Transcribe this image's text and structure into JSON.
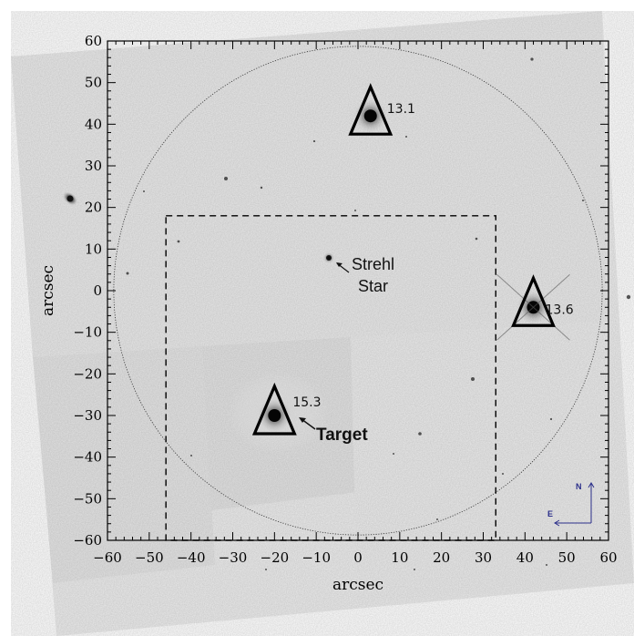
{
  "axes": {
    "xlabel": "arcsec",
    "ylabel": "arcsec",
    "xlim": [
      -60,
      60
    ],
    "ylim": [
      -60,
      60
    ],
    "xticks": [
      "−60",
      "−50",
      "−40",
      "−30",
      "−20",
      "−10",
      "0",
      "10",
      "20",
      "30",
      "40",
      "50",
      "60"
    ],
    "yticks": [
      "60",
      "50",
      "40",
      "30",
      "20",
      "10",
      "0",
      "−10",
      "−20",
      "−30",
      "−40",
      "−50",
      "−60"
    ]
  },
  "field_circle": {
    "radius_arcsec": 58.5,
    "center": [
      0,
      0
    ]
  },
  "dashed_box": {
    "x": [
      -46,
      33
    ],
    "y": [
      -60,
      18
    ]
  },
  "stars": [
    {
      "name": "star-13-1",
      "x": 3,
      "y": 42,
      "mag_label": "13.1"
    },
    {
      "name": "star-13-6",
      "x": 42,
      "y": -4,
      "mag_label": "13.6"
    },
    {
      "name": "target-15-3",
      "x": -20,
      "y": -30,
      "mag_label": "15.3"
    }
  ],
  "annotations": {
    "strehl_line1": "Strehl",
    "strehl_line2": "Star",
    "target_label": "Target"
  },
  "compass": {
    "north": "N",
    "east": "E",
    "color": "#2b2f8a"
  }
}
